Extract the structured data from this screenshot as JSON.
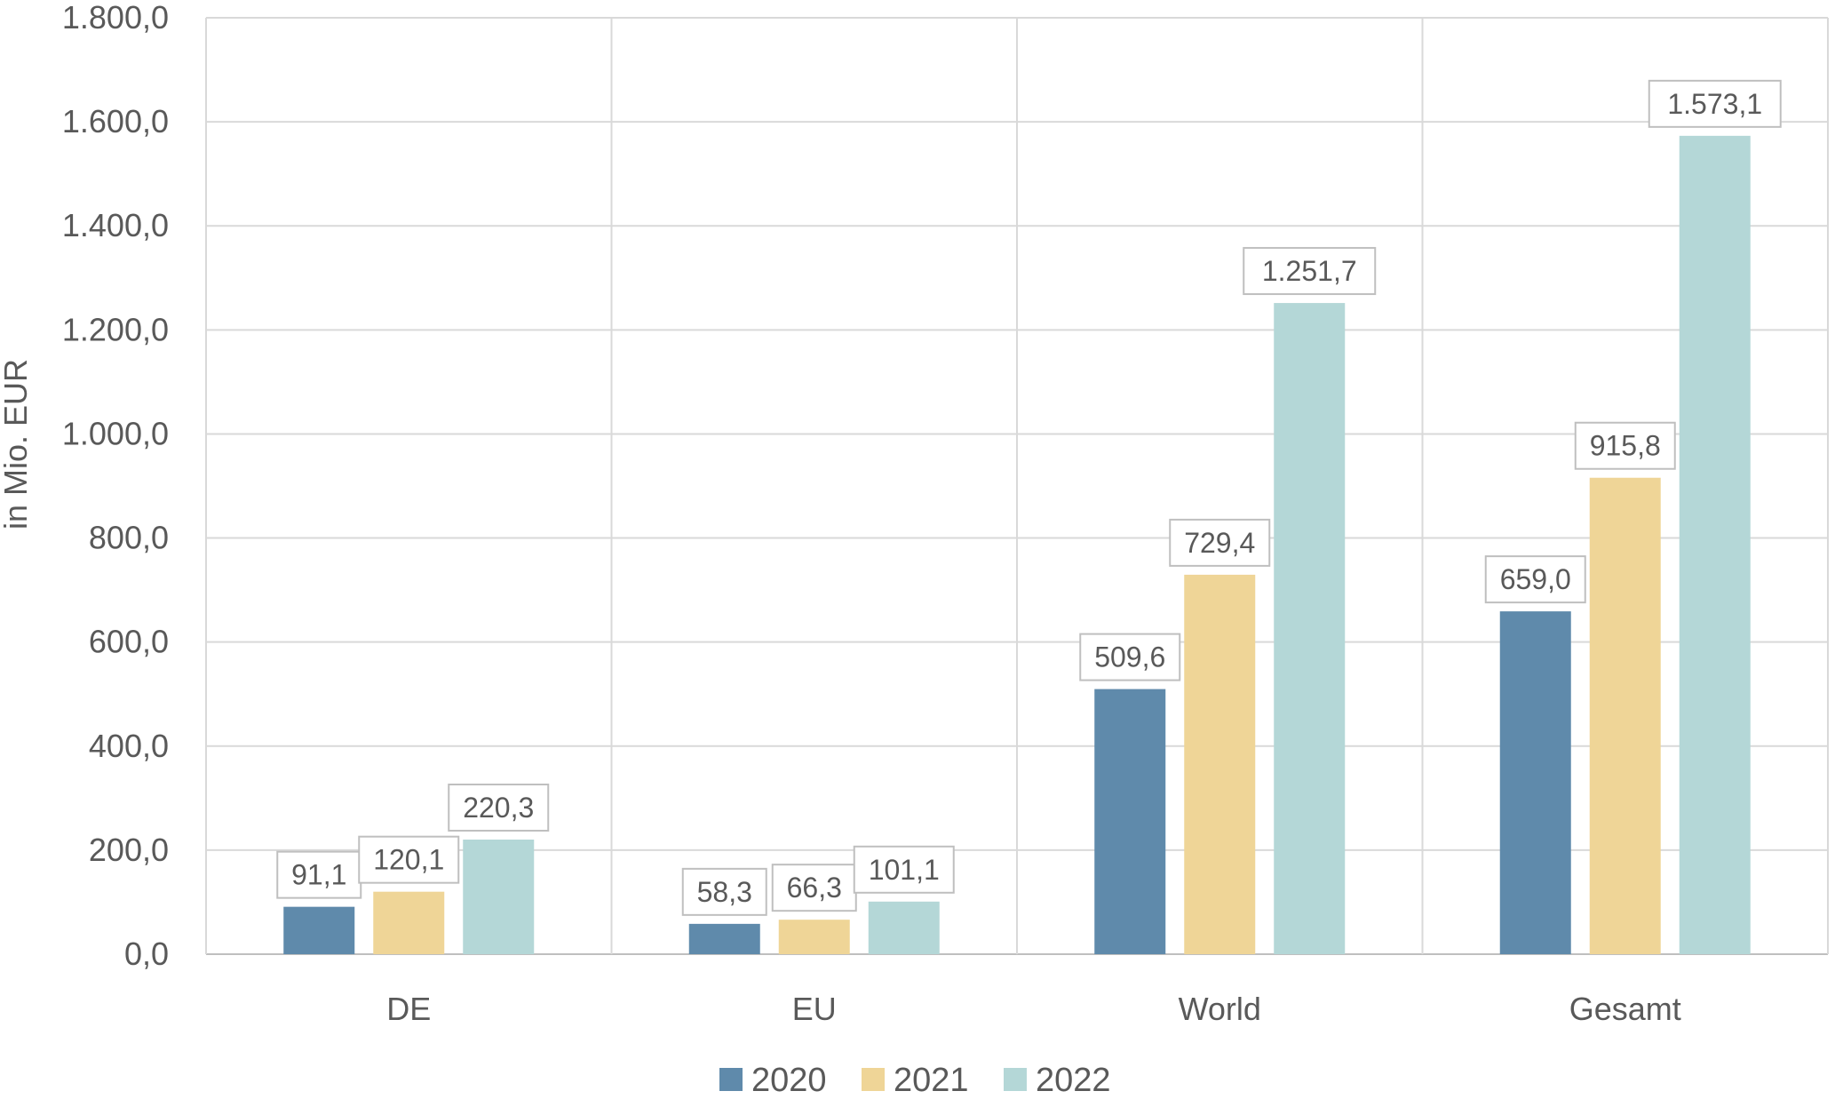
{
  "chart_data": {
    "type": "bar",
    "title": "",
    "xlabel": "",
    "ylabel": "in Mio. EUR",
    "ylim": [
      0,
      1800
    ],
    "y_ticks": [
      "0,0",
      "200,0",
      "400,0",
      "600,0",
      "800,0",
      "1.000,0",
      "1.200,0",
      "1.400,0",
      "1.600,0",
      "1.800,0"
    ],
    "categories": [
      "DE",
      "EU",
      "World",
      "Gesamt"
    ],
    "series": [
      {
        "name": "2020",
        "color": "#5f8aab",
        "values": [
          91.1,
          58.3,
          509.6,
          659.0
        ],
        "labels": [
          "91,1",
          "58,3",
          "509,6",
          "659,0"
        ]
      },
      {
        "name": "2021",
        "color": "#efd597",
        "values": [
          120.1,
          66.3,
          729.4,
          915.8
        ],
        "labels": [
          "120,1",
          "66,3",
          "729,4",
          "915,8"
        ]
      },
      {
        "name": "2022",
        "color": "#b4d7d7",
        "values": [
          220.3,
          101.1,
          1251.7,
          1573.1
        ],
        "labels": [
          "220,3",
          "101,1",
          "1.251,7",
          "1.573,1"
        ]
      }
    ],
    "grid": true,
    "legend_position": "bottom"
  }
}
